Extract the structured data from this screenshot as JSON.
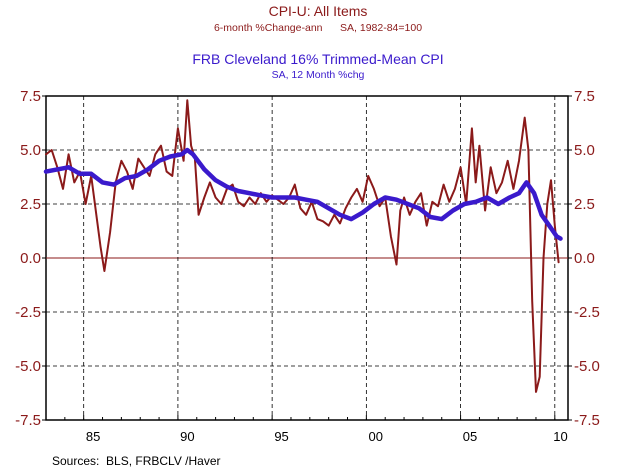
{
  "chart_data": {
    "type": "line",
    "titles": {
      "line1": "CPI-U: All Items",
      "line2": "6-month %Change-ann      SA, 1982-84=100",
      "line3": "FRB Cleveland 16% Trimmed-Mean CPI",
      "line4": "SA, 12 Month %chg"
    },
    "ylim": [
      -7.5,
      7.5
    ],
    "xlim": [
      1983.0,
      2010.7
    ],
    "y_ticks": [
      7.5,
      5.0,
      2.5,
      0.0,
      -2.5,
      -5.0,
      -7.5
    ],
    "y_tick_labels": [
      "7.5",
      "5.0",
      "2.5",
      "0.0",
      "-2.5",
      "-5.0",
      "-7.5"
    ],
    "x_tick_labels": [
      {
        "label": "85",
        "x": 1985.5
      },
      {
        "label": "90",
        "x": 1990.5
      },
      {
        "label": "95",
        "x": 1995.5
      },
      {
        "label": "00",
        "x": 2000.5
      },
      {
        "label": "05",
        "x": 2005.5
      },
      {
        "label": "10",
        "x": 2010.3
      }
    ],
    "vertical_gridlines": [
      1985,
      1990,
      1995,
      2000,
      2005,
      2010
    ],
    "source": "Sources:  BLS, FRBCLV /Haver",
    "series": [
      {
        "name": "CPI-U: All Items (6-month %Change-ann)",
        "color": "#8b1a1a",
        "x": [
          1983.0,
          1983.3,
          1983.6,
          1983.9,
          1984.2,
          1984.5,
          1984.8,
          1985.1,
          1985.4,
          1985.7,
          1985.9,
          1986.1,
          1986.4,
          1986.7,
          1987.0,
          1987.3,
          1987.6,
          1987.9,
          1988.2,
          1988.5,
          1988.8,
          1989.1,
          1989.4,
          1989.7,
          1990.0,
          1990.3,
          1990.5,
          1990.7,
          1990.9,
          1991.1,
          1991.4,
          1991.7,
          1992.0,
          1992.3,
          1992.6,
          1992.9,
          1993.2,
          1993.5,
          1993.8,
          1994.1,
          1994.4,
          1994.7,
          1995.0,
          1995.3,
          1995.6,
          1995.9,
          1996.2,
          1996.5,
          1996.8,
          1997.1,
          1997.4,
          1997.7,
          1998.0,
          1998.3,
          1998.6,
          1998.9,
          1999.2,
          1999.5,
          1999.8,
          2000.1,
          2000.4,
          2000.7,
          2001.0,
          2001.3,
          2001.6,
          2001.8,
          2002.0,
          2002.3,
          2002.6,
          2002.9,
          2003.2,
          2003.5,
          2003.8,
          2004.1,
          2004.4,
          2004.7,
          2005.0,
          2005.3,
          2005.6,
          2005.8,
          2006.0,
          2006.3,
          2006.6,
          2006.9,
          2007.2,
          2007.5,
          2007.8,
          2008.1,
          2008.4,
          2008.6,
          2008.8,
          2009.0,
          2009.2,
          2009.4,
          2009.6,
          2009.8,
          2010.0,
          2010.2
        ],
        "values": [
          4.8,
          5.0,
          4.2,
          3.2,
          4.8,
          3.5,
          4.0,
          2.5,
          3.8,
          1.8,
          0.5,
          -0.6,
          1.2,
          3.5,
          4.5,
          4.0,
          3.2,
          4.6,
          4.2,
          3.8,
          4.8,
          5.2,
          4.0,
          3.8,
          6.0,
          4.5,
          7.3,
          5.2,
          4.6,
          2.0,
          2.8,
          3.5,
          2.8,
          2.5,
          3.2,
          3.4,
          2.6,
          2.4,
          2.8,
          2.5,
          3.0,
          2.6,
          2.9,
          2.7,
          2.5,
          2.8,
          3.4,
          2.3,
          2.0,
          2.6,
          1.8,
          1.7,
          1.5,
          2.0,
          1.6,
          2.3,
          2.8,
          3.2,
          2.6,
          3.8,
          3.2,
          2.4,
          2.8,
          1.0,
          -0.3,
          2.2,
          2.8,
          2.0,
          2.6,
          3.0,
          1.5,
          2.6,
          2.4,
          3.4,
          2.6,
          3.2,
          4.2,
          2.5,
          6.0,
          3.5,
          5.2,
          2.2,
          4.2,
          3.0,
          3.5,
          4.5,
          3.2,
          4.5,
          6.5,
          5.0,
          -2.0,
          -6.2,
          -5.5,
          0.0,
          2.5,
          3.6,
          1.5,
          -0.2
        ]
      },
      {
        "name": "FRB Cleveland 16% Trimmed-Mean CPI (SA, 12 Month %chg)",
        "color": "#3a1acc",
        "x": [
          1983.0,
          1983.6,
          1984.2,
          1984.8,
          1985.4,
          1986.0,
          1986.6,
          1987.2,
          1987.8,
          1988.4,
          1989.0,
          1989.6,
          1990.2,
          1990.5,
          1990.8,
          1991.4,
          1992.0,
          1992.6,
          1993.2,
          1993.8,
          1994.4,
          1995.0,
          1995.6,
          1996.2,
          1996.8,
          1997.4,
          1998.0,
          1998.6,
          1999.2,
          1999.8,
          2000.4,
          2001.0,
          2001.6,
          2002.2,
          2002.8,
          2003.4,
          2004.0,
          2004.6,
          2005.2,
          2005.8,
          2006.4,
          2007.0,
          2007.6,
          2008.1,
          2008.5,
          2008.9,
          2009.3,
          2009.7,
          2010.1,
          2010.3
        ],
        "values": [
          4.0,
          4.1,
          4.2,
          3.9,
          3.9,
          3.5,
          3.4,
          3.7,
          3.8,
          4.1,
          4.5,
          4.7,
          4.8,
          5.0,
          4.8,
          4.1,
          3.6,
          3.3,
          3.1,
          3.0,
          2.9,
          2.8,
          2.8,
          2.8,
          2.7,
          2.6,
          2.3,
          2.0,
          1.8,
          2.1,
          2.5,
          2.8,
          2.7,
          2.5,
          2.3,
          1.9,
          1.8,
          2.2,
          2.5,
          2.6,
          2.8,
          2.5,
          2.8,
          3.0,
          3.5,
          3.0,
          2.0,
          1.5,
          1.0,
          0.9
        ]
      }
    ]
  }
}
